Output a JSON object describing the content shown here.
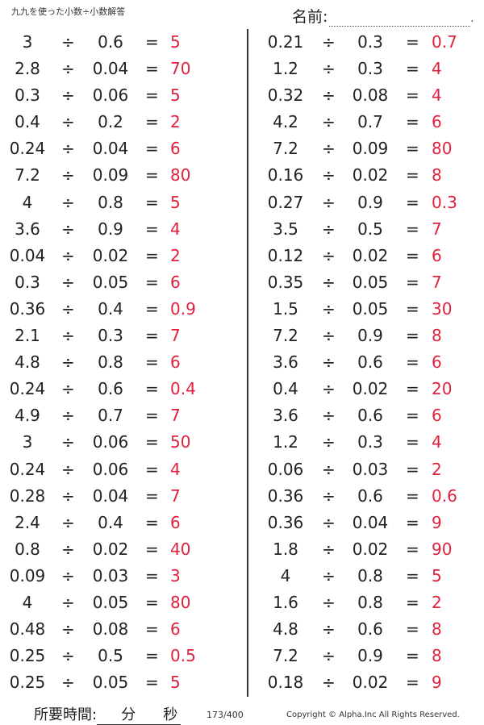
{
  "header": {
    "title": "九九を使った小数÷小数解答",
    "name_label": "名前:",
    "name_end": "."
  },
  "operator": "÷",
  "equals": "=",
  "left_problems": [
    {
      "a": "3",
      "b": "0.6",
      "ans": "5"
    },
    {
      "a": "2.8",
      "b": "0.04",
      "ans": "70"
    },
    {
      "a": "0.3",
      "b": "0.06",
      "ans": "5"
    },
    {
      "a": "0.4",
      "b": "0.2",
      "ans": "2"
    },
    {
      "a": "0.24",
      "b": "0.04",
      "ans": "6"
    },
    {
      "a": "7.2",
      "b": "0.09",
      "ans": "80"
    },
    {
      "a": "4",
      "b": "0.8",
      "ans": "5"
    },
    {
      "a": "3.6",
      "b": "0.9",
      "ans": "4"
    },
    {
      "a": "0.04",
      "b": "0.02",
      "ans": "2"
    },
    {
      "a": "0.3",
      "b": "0.05",
      "ans": "6"
    },
    {
      "a": "0.36",
      "b": "0.4",
      "ans": "0.9"
    },
    {
      "a": "2.1",
      "b": "0.3",
      "ans": "7"
    },
    {
      "a": "4.8",
      "b": "0.8",
      "ans": "6"
    },
    {
      "a": "0.24",
      "b": "0.6",
      "ans": "0.4"
    },
    {
      "a": "4.9",
      "b": "0.7",
      "ans": "7"
    },
    {
      "a": "3",
      "b": "0.06",
      "ans": "50"
    },
    {
      "a": "0.24",
      "b": "0.06",
      "ans": "4"
    },
    {
      "a": "0.28",
      "b": "0.04",
      "ans": "7"
    },
    {
      "a": "2.4",
      "b": "0.4",
      "ans": "6"
    },
    {
      "a": "0.8",
      "b": "0.02",
      "ans": "40"
    },
    {
      "a": "0.09",
      "b": "0.03",
      "ans": "3"
    },
    {
      "a": "4",
      "b": "0.05",
      "ans": "80"
    },
    {
      "a": "0.48",
      "b": "0.08",
      "ans": "6"
    },
    {
      "a": "0.25",
      "b": "0.5",
      "ans": "0.5"
    },
    {
      "a": "0.25",
      "b": "0.05",
      "ans": "5"
    }
  ],
  "right_problems": [
    {
      "a": "0.21",
      "b": "0.3",
      "ans": "0.7"
    },
    {
      "a": "1.2",
      "b": "0.3",
      "ans": "4"
    },
    {
      "a": "0.32",
      "b": "0.08",
      "ans": "4"
    },
    {
      "a": "4.2",
      "b": "0.7",
      "ans": "6"
    },
    {
      "a": "7.2",
      "b": "0.09",
      "ans": "80"
    },
    {
      "a": "0.16",
      "b": "0.02",
      "ans": "8"
    },
    {
      "a": "0.27",
      "b": "0.9",
      "ans": "0.3"
    },
    {
      "a": "3.5",
      "b": "0.5",
      "ans": "7"
    },
    {
      "a": "0.12",
      "b": "0.02",
      "ans": "6"
    },
    {
      "a": "0.35",
      "b": "0.05",
      "ans": "7"
    },
    {
      "a": "1.5",
      "b": "0.05",
      "ans": "30"
    },
    {
      "a": "7.2",
      "b": "0.9",
      "ans": "8"
    },
    {
      "a": "3.6",
      "b": "0.6",
      "ans": "6"
    },
    {
      "a": "0.4",
      "b": "0.02",
      "ans": "20"
    },
    {
      "a": "3.6",
      "b": "0.6",
      "ans": "6"
    },
    {
      "a": "1.2",
      "b": "0.3",
      "ans": "4"
    },
    {
      "a": "0.06",
      "b": "0.03",
      "ans": "2"
    },
    {
      "a": "0.36",
      "b": "0.6",
      "ans": "0.6"
    },
    {
      "a": "0.36",
      "b": "0.04",
      "ans": "9"
    },
    {
      "a": "1.8",
      "b": "0.02",
      "ans": "90"
    },
    {
      "a": "4",
      "b": "0.8",
      "ans": "5"
    },
    {
      "a": "1.6",
      "b": "0.8",
      "ans": "2"
    },
    {
      "a": "4.8",
      "b": "0.6",
      "ans": "8"
    },
    {
      "a": "7.2",
      "b": "0.9",
      "ans": "8"
    },
    {
      "a": "0.18",
      "b": "0.02",
      "ans": "9"
    }
  ],
  "footer": {
    "time_label": "所要時間:",
    "minutes_unit": "分",
    "seconds_unit": "秒",
    "page": "173/400",
    "copyright": "Copyright © Alpha.Inc All Rights Reserved."
  },
  "colors": {
    "answer": "#e0213d",
    "text": "#222222"
  }
}
